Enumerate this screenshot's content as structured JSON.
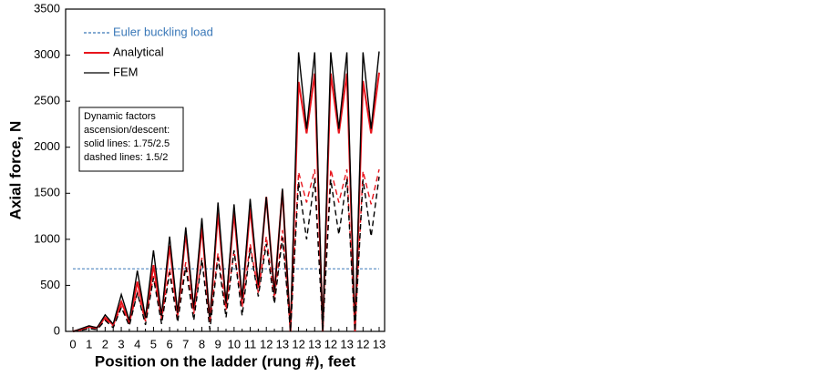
{
  "chart_data": {
    "type": "line",
    "xlabel": "Position on the ladder (rung #), feet",
    "ylabel": "Axial force, N",
    "categories": [
      "0",
      null,
      "1",
      null,
      "2",
      null,
      "3",
      null,
      "4",
      null,
      "5",
      null,
      "6",
      null,
      "7",
      null,
      "8",
      null,
      "9",
      null,
      "10",
      null,
      "11",
      null,
      "12",
      null,
      "13",
      null,
      "12",
      null,
      "13",
      null,
      "12",
      null,
      "13",
      null,
      "12",
      null,
      "13"
    ],
    "ylim": [
      0,
      3500
    ],
    "yticks": [
      0,
      500,
      1000,
      1500,
      2000,
      2500,
      3000,
      3500
    ],
    "series": [
      {
        "name": "Euler buckling load",
        "color": "#3a78b8",
        "dashed": true,
        "values": [
          680,
          680,
          680,
          680,
          680,
          680,
          680,
          680,
          680,
          680,
          680,
          680,
          680,
          680,
          680,
          680,
          680,
          680,
          680,
          680,
          680,
          680,
          680,
          680,
          680,
          680,
          680,
          680,
          680,
          680,
          680,
          680,
          680,
          680,
          680,
          680,
          680,
          680,
          680
        ]
      },
      {
        "name": "Analytical",
        "color": "#e8141c",
        "dashed": false,
        "values": [
          0,
          20,
          50,
          40,
          150,
          70,
          320,
          110,
          540,
          140,
          720,
          160,
          930,
          180,
          1070,
          230,
          1130,
          120,
          1290,
          280,
          1290,
          330,
          1340,
          470,
          1460,
          420,
          1530,
          0,
          2710,
          2150,
          2800,
          0,
          2800,
          2150,
          2800,
          0,
          2720,
          2150,
          2810
        ]
      },
      {
        "name": "FEM",
        "color": "#000000",
        "dashed": false,
        "values": [
          0,
          30,
          60,
          40,
          180,
          80,
          400,
          120,
          660,
          150,
          880,
          170,
          1030,
          200,
          1130,
          250,
          1230,
          100,
          1400,
          300,
          1380,
          350,
          1440,
          500,
          1460,
          400,
          1550,
          0,
          3030,
          2200,
          3030,
          0,
          3030,
          2200,
          3030,
          0,
          3030,
          2200,
          3040
        ]
      },
      {
        "color": "#e8141c",
        "dashed": true,
        "values": [
          0,
          15,
          40,
          30,
          130,
          60,
          270,
          90,
          430,
          110,
          600,
          130,
          680,
          150,
          750,
          190,
          800,
          80,
          850,
          230,
          880,
          260,
          950,
          420,
          1030,
          350,
          1100,
          0,
          1730,
          1400,
          1760,
          0,
          1760,
          1400,
          1760,
          0,
          1740,
          1380,
          1760
        ]
      },
      {
        "color": "#000000",
        "dashed": true,
        "values": [
          0,
          10,
          30,
          20,
          120,
          40,
          260,
          60,
          420,
          70,
          580,
          80,
          640,
          100,
          700,
          120,
          780,
          20,
          800,
          150,
          880,
          170,
          900,
          380,
          950,
          300,
          1020,
          0,
          1620,
          1000,
          1660,
          0,
          1650,
          1050,
          1660,
          0,
          1650,
          1030,
          1680
        ]
      }
    ],
    "annotation": [
      "Dynamic factors",
      "ascension/descent:",
      "solid lines: 1.75/2.5",
      "dashed lines: 1.5/2"
    ]
  }
}
